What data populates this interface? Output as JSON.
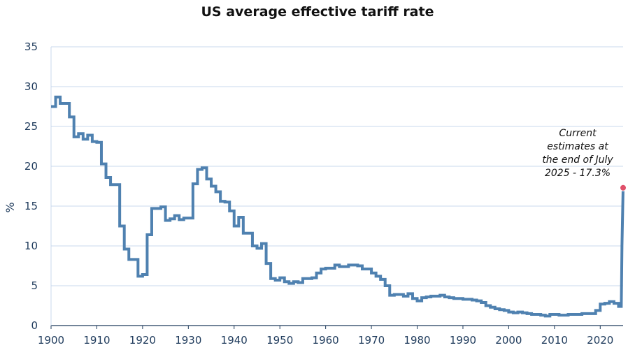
{
  "chart_data": {
    "type": "line",
    "title": "US average effective tariff rate",
    "xlabel": "",
    "ylabel": "%",
    "xlim": [
      1900,
      2025
    ],
    "ylim": [
      0,
      35
    ],
    "x_ticks": [
      1900,
      1910,
      1920,
      1930,
      1940,
      1950,
      1960,
      1970,
      1980,
      1990,
      2000,
      2010,
      2020
    ],
    "y_ticks": [
      0,
      5,
      10,
      15,
      20,
      25,
      30,
      35
    ],
    "grid": "horizontal",
    "line_color": "#4f81b0",
    "marker_color": "#e0506a",
    "series": [
      {
        "x": [
          1900,
          1901,
          1902,
          1903,
          1904,
          1905,
          1906,
          1907,
          1908,
          1909,
          1910,
          1911,
          1912,
          1913,
          1914,
          1915,
          1916,
          1917,
          1918,
          1919,
          1920,
          1921,
          1922,
          1923,
          1924,
          1925,
          1926,
          1927,
          1928,
          1929,
          1930,
          1931,
          1932,
          1933,
          1934,
          1935,
          1936,
          1937,
          1938,
          1939,
          1940,
          1941,
          1942,
          1943,
          1944,
          1945,
          1946,
          1947,
          1948,
          1949,
          1950,
          1951,
          1952,
          1953,
          1954,
          1955,
          1956,
          1957,
          1958,
          1959,
          1960,
          1961,
          1962,
          1963,
          1964,
          1965,
          1966,
          1967,
          1968,
          1969,
          1970,
          1971,
          1972,
          1973,
          1974,
          1975,
          1976,
          1977,
          1978,
          1979,
          1980,
          1981,
          1982,
          1983,
          1984,
          1985,
          1986,
          1987,
          1988,
          1989,
          1990,
          1991,
          1992,
          1993,
          1994,
          1995,
          1996,
          1997,
          1998,
          1999,
          2000,
          2001,
          2002,
          2003,
          2004,
          2005,
          2006,
          2007,
          2008,
          2009,
          2010,
          2011,
          2012,
          2013,
          2014,
          2015,
          2016,
          2017,
          2018,
          2019,
          2020,
          2021,
          2022,
          2023,
          2024,
          2025
        ],
        "values": [
          27.5,
          28.7,
          27.9,
          27.9,
          26.2,
          23.7,
          24.1,
          23.4,
          23.9,
          23.1,
          23.0,
          20.3,
          18.6,
          17.7,
          17.7,
          12.5,
          9.6,
          8.3,
          8.3,
          6.2,
          6.4,
          11.4,
          14.7,
          14.7,
          14.9,
          13.2,
          13.4,
          13.8,
          13.3,
          13.5,
          13.5,
          17.8,
          19.6,
          19.8,
          18.4,
          17.5,
          16.8,
          15.6,
          15.5,
          14.4,
          12.5,
          13.6,
          11.6,
          11.6,
          10.0,
          9.7,
          10.3,
          7.8,
          5.9,
          5.7,
          6.0,
          5.5,
          5.3,
          5.5,
          5.4,
          5.9,
          5.9,
          6.0,
          6.6,
          7.1,
          7.2,
          7.2,
          7.6,
          7.4,
          7.4,
          7.6,
          7.6,
          7.5,
          7.1,
          7.1,
          6.6,
          6.2,
          5.8,
          5.0,
          3.8,
          3.9,
          3.9,
          3.7,
          4.0,
          3.4,
          3.1,
          3.5,
          3.6,
          3.7,
          3.7,
          3.8,
          3.6,
          3.5,
          3.4,
          3.4,
          3.3,
          3.3,
          3.2,
          3.1,
          2.9,
          2.5,
          2.3,
          2.1,
          2.0,
          1.9,
          1.7,
          1.6,
          1.7,
          1.6,
          1.5,
          1.4,
          1.4,
          1.3,
          1.2,
          1.4,
          1.4,
          1.3,
          1.3,
          1.4,
          1.4,
          1.4,
          1.5,
          1.5,
          1.5,
          1.9,
          2.7,
          2.8,
          3.0,
          2.8,
          2.4,
          17.3
        ]
      }
    ],
    "annotation": {
      "lines": [
        "Current",
        "estimates at",
        "the end of July",
        "2025 - 17.3%"
      ],
      "x": 2025,
      "y": 17.3
    }
  }
}
